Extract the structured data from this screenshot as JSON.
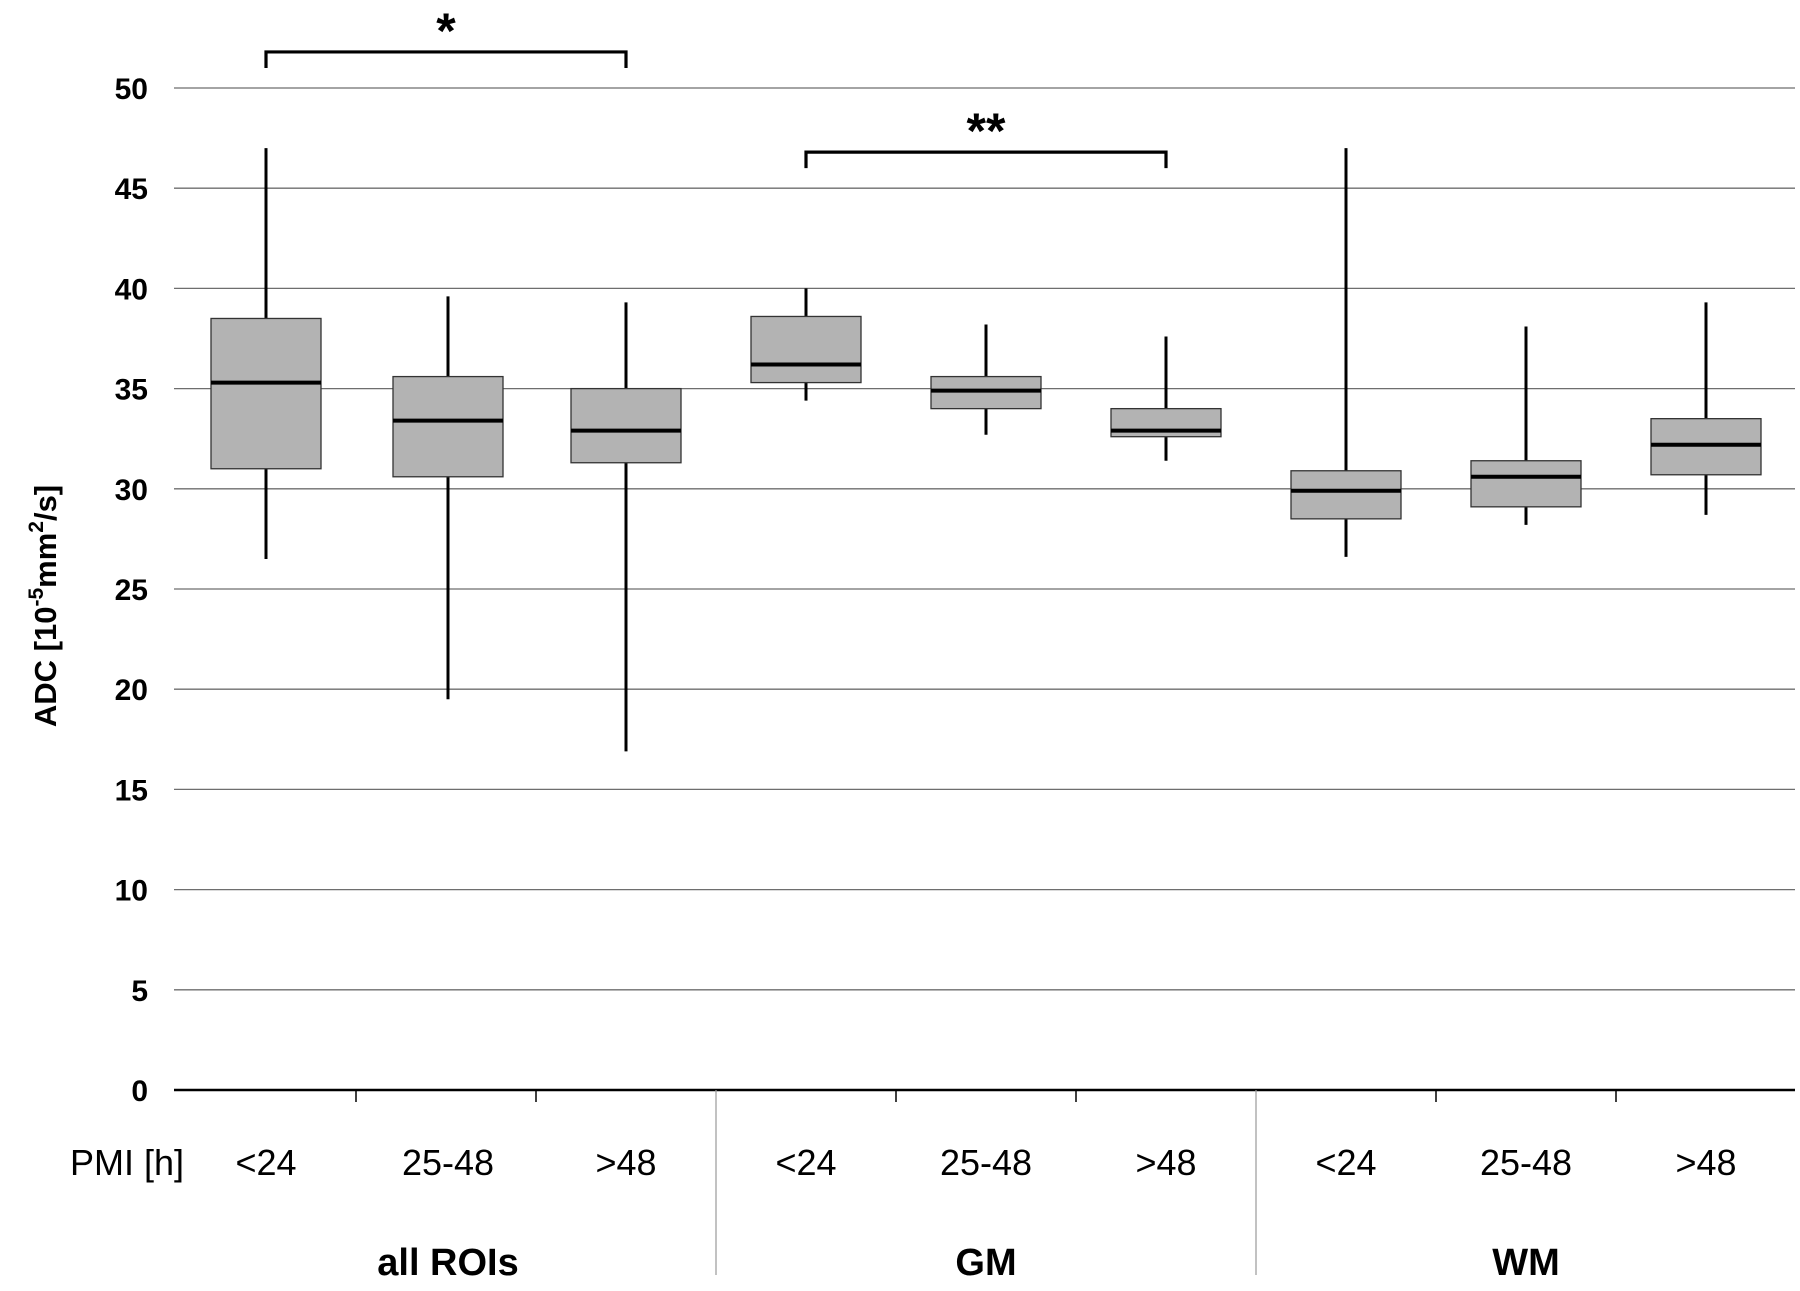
{
  "chart_data": {
    "type": "boxplot",
    "ylabel": {
      "main": "ADC [10",
      "sup1": "-5",
      "mid": "mm",
      "sup2": "2",
      "end": "/s]"
    },
    "xlabel": "PMI [h]",
    "ylim": [
      0,
      50
    ],
    "yticks": [
      0,
      5,
      10,
      15,
      20,
      25,
      30,
      35,
      40,
      45,
      50
    ],
    "grid": true,
    "box_color": "#b3b3b3",
    "groups": [
      {
        "name": "all ROIs",
        "boxes": [
          {
            "category": "<24",
            "min": 26.5,
            "q1": 31.0,
            "median": 35.3,
            "q3": 38.5,
            "max": 47.0
          },
          {
            "category": "25-48",
            "min": 19.5,
            "q1": 30.6,
            "median": 33.4,
            "q3": 35.6,
            "max": 39.6
          },
          {
            "category": ">48",
            "min": 16.9,
            "q1": 31.3,
            "median": 32.9,
            "q3": 35.0,
            "max": 39.3
          }
        ]
      },
      {
        "name": "GM",
        "boxes": [
          {
            "category": "<24",
            "min": 34.4,
            "q1": 35.3,
            "median": 36.2,
            "q3": 38.6,
            "max": 40.0
          },
          {
            "category": "25-48",
            "min": 32.7,
            "q1": 34.0,
            "median": 34.9,
            "q3": 35.6,
            "max": 38.2
          },
          {
            "category": ">48",
            "min": 31.4,
            "q1": 32.6,
            "median": 32.9,
            "q3": 34.0,
            "max": 37.6
          }
        ]
      },
      {
        "name": "WM",
        "boxes": [
          {
            "category": "<24",
            "min": 26.6,
            "q1": 28.5,
            "median": 29.9,
            "q3": 30.9,
            "max": 47.0
          },
          {
            "category": "25-48",
            "min": 28.2,
            "q1": 29.1,
            "median": 30.6,
            "q3": 31.4,
            "max": 38.1
          },
          {
            "category": ">48",
            "min": 28.7,
            "q1": 30.7,
            "median": 32.2,
            "q3": 33.5,
            "max": 39.3
          }
        ]
      }
    ],
    "annotations": [
      {
        "label": "*",
        "from": [
          0,
          0
        ],
        "to": [
          0,
          2
        ],
        "y": 51.8,
        "drop_to": 51.0
      },
      {
        "label": "**",
        "from": [
          1,
          0
        ],
        "to": [
          1,
          2
        ],
        "y": 46.8,
        "drop_to": 46.0
      }
    ]
  }
}
